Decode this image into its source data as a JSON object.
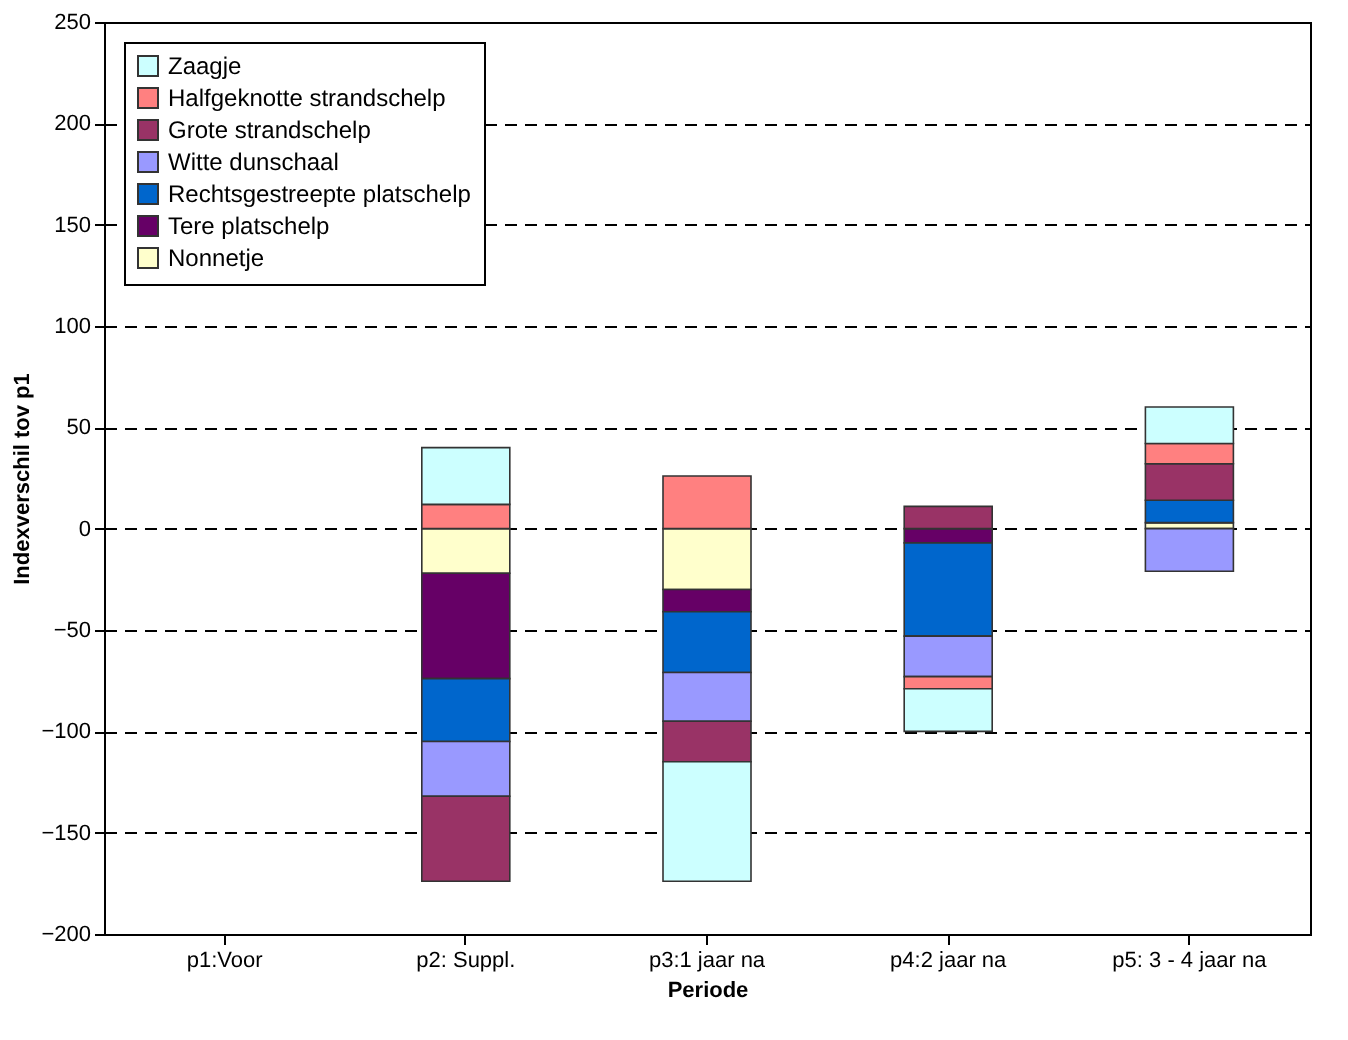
{
  "chart_data": {
    "type": "bar",
    "stacked": true,
    "xlabel": "Periode",
    "ylabel": "Indexverschil tov p1",
    "categories": [
      "p1:Voor",
      "p2: Suppl.",
      "p3:1 jaar na",
      "p4:2 jaar na",
      "p5: 3 - 4 jaar na"
    ],
    "series": [
      {
        "name": "Nonnetje",
        "color": "#ffffcc",
        "values": [
          null,
          -22,
          -30,
          0,
          3
        ]
      },
      {
        "name": "Tere platschelp",
        "color": "#660066",
        "values": [
          null,
          -52,
          -11,
          -7,
          0
        ]
      },
      {
        "name": "Rechtsgestreepte platschelp",
        "color": "#0066cc",
        "values": [
          null,
          -31,
          -30,
          -46,
          11
        ]
      },
      {
        "name": "Witte dunschaal",
        "color": "#9999ff",
        "values": [
          null,
          -27,
          -24,
          -20,
          -21
        ]
      },
      {
        "name": "Grote strandschelp",
        "color": "#993366",
        "values": [
          null,
          -42,
          -20,
          11,
          18
        ]
      },
      {
        "name": "Halfgeknotte strandschelp",
        "color": "#ff8080",
        "values": [
          null,
          12,
          26,
          -6,
          10
        ]
      },
      {
        "name": "Zaagje",
        "color": "#ccffff",
        "values": [
          null,
          28,
          -59,
          -21,
          18
        ]
      }
    ],
    "ylim": [
      -200,
      250
    ],
    "yticks": [
      -200,
      -150,
      -100,
      -50,
      0,
      50,
      100,
      150,
      200,
      250
    ],
    "grid": "y",
    "legend": "top left"
  }
}
